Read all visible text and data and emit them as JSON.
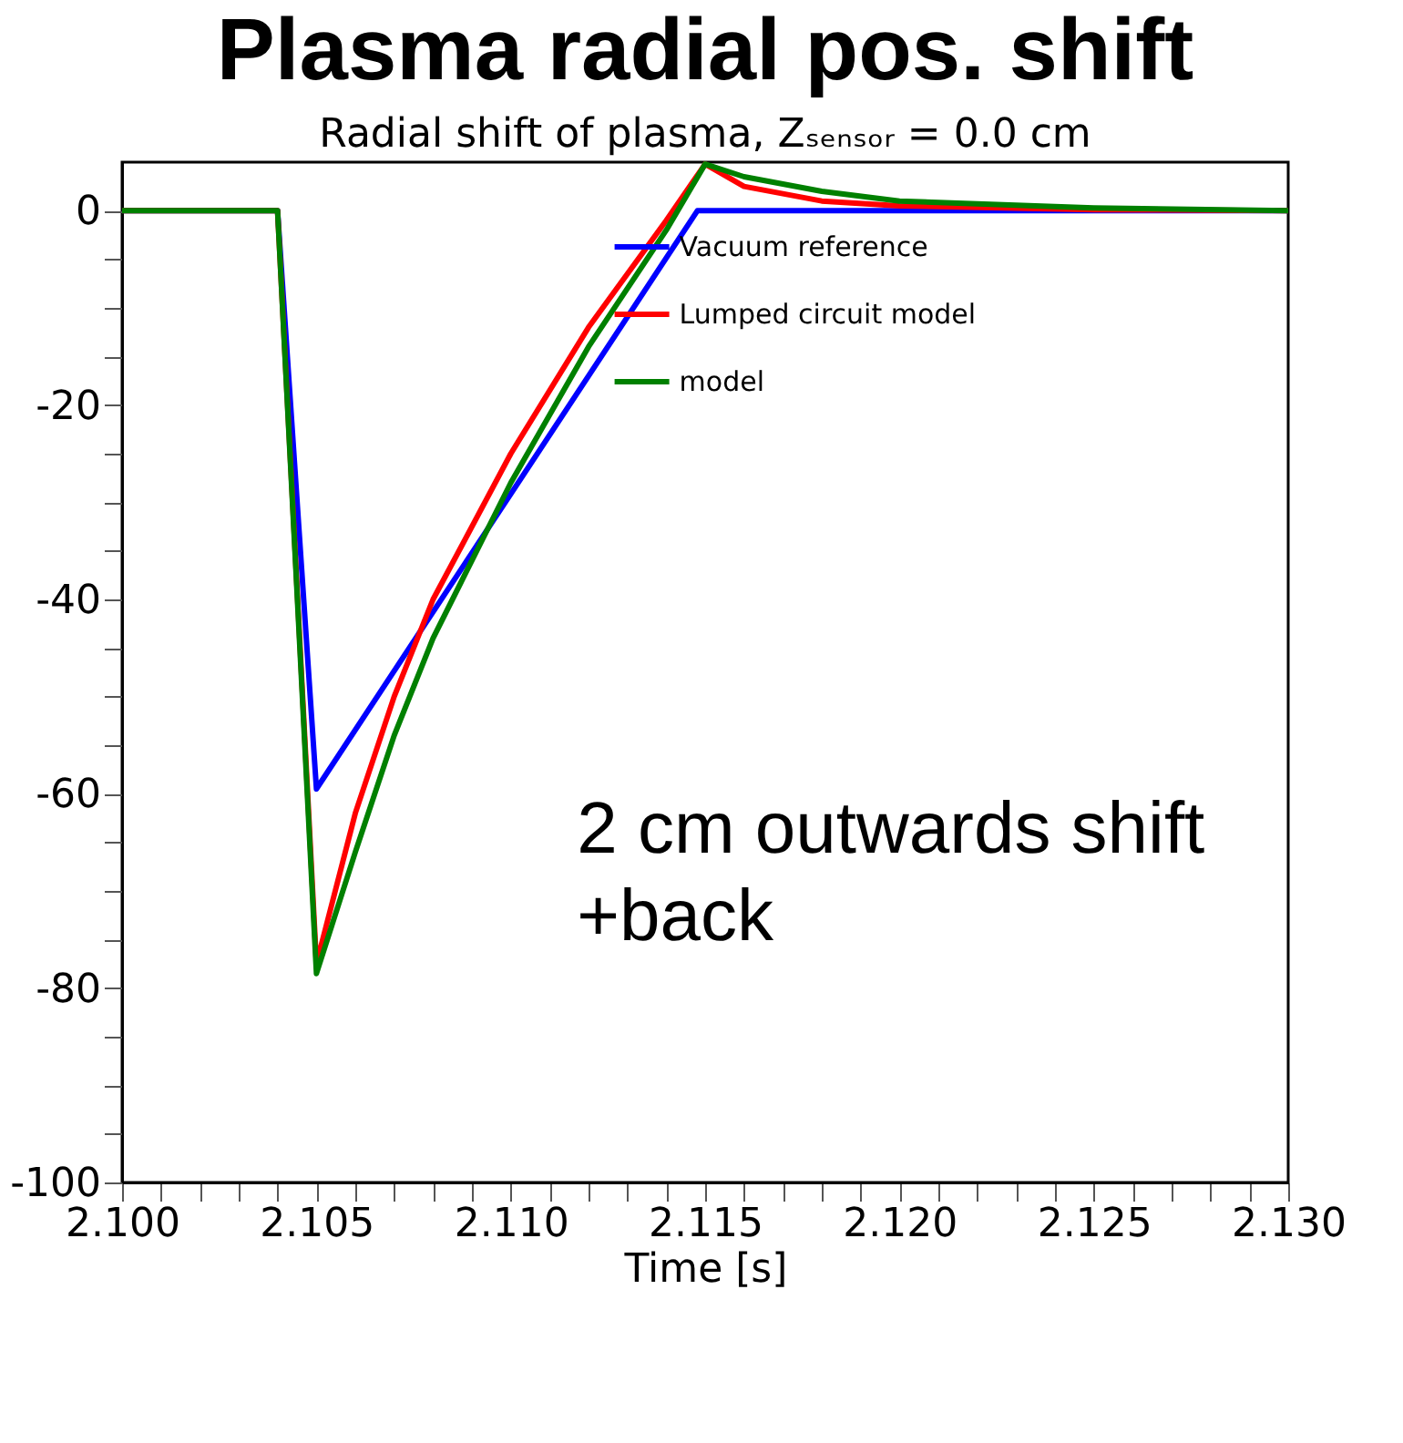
{
  "chart_data": {
    "type": "line",
    "title": "Plasma radial pos. shift",
    "subtitle": "Radial shift of plasma, Zₛₑₙₛₒᵣ = 0.0 cm",
    "xlabel": "Time [s]",
    "annotations": [
      "2 cm outwards shift\n+back"
    ],
    "series": [
      {
        "name": "Vacuum reference",
        "color": "#0000ff",
        "x": [
          2.1,
          2.104,
          2.105,
          2.1148,
          2.13
        ],
        "values": [
          0,
          0,
          -59.5,
          0,
          0
        ]
      },
      {
        "name": "Lumped circuit model",
        "color": "#ff0000",
        "x": [
          2.1,
          2.104,
          2.105,
          2.106,
          2.107,
          2.108,
          2.11,
          2.112,
          2.114,
          2.115,
          2.116,
          2.118,
          2.12,
          2.125,
          2.13
        ],
        "values": [
          0,
          0,
          -77.5,
          -62,
          -50,
          -40,
          -25,
          -12,
          -1,
          4.8,
          2.5,
          1,
          0.5,
          0.1,
          0
        ]
      },
      {
        "name": "model",
        "color": "#008000",
        "x": [
          2.1,
          2.104,
          2.105,
          2.106,
          2.107,
          2.108,
          2.11,
          2.112,
          2.114,
          2.115,
          2.116,
          2.118,
          2.12,
          2.125,
          2.13
        ],
        "values": [
          0,
          0,
          -78.5,
          -66,
          -54,
          -44,
          -28,
          -14,
          -2,
          4.8,
          3.5,
          2,
          1,
          0.3,
          0
        ]
      }
    ],
    "xlim": [
      2.1,
      2.13
    ],
    "ylim": [
      -100,
      5
    ],
    "xticks": [
      {
        "value": 2.1,
        "label": "2.100"
      },
      {
        "value": 2.101,
        "label": null
      },
      {
        "value": 2.102,
        "label": null
      },
      {
        "value": 2.103,
        "label": null
      },
      {
        "value": 2.104,
        "label": null
      },
      {
        "value": 2.105,
        "label": "2.105"
      },
      {
        "value": 2.106,
        "label": null
      },
      {
        "value": 2.107,
        "label": null
      },
      {
        "value": 2.108,
        "label": null
      },
      {
        "value": 2.109,
        "label": null
      },
      {
        "value": 2.11,
        "label": "2.110"
      },
      {
        "value": 2.111,
        "label": null
      },
      {
        "value": 2.112,
        "label": null
      },
      {
        "value": 2.113,
        "label": null
      },
      {
        "value": 2.114,
        "label": null
      },
      {
        "value": 2.115,
        "label": "2.115"
      },
      {
        "value": 2.116,
        "label": null
      },
      {
        "value": 2.117,
        "label": null
      },
      {
        "value": 2.118,
        "label": null
      },
      {
        "value": 2.119,
        "label": null
      },
      {
        "value": 2.12,
        "label": "2.120"
      },
      {
        "value": 2.121,
        "label": null
      },
      {
        "value": 2.122,
        "label": null
      },
      {
        "value": 2.123,
        "label": null
      },
      {
        "value": 2.124,
        "label": null
      },
      {
        "value": 2.125,
        "label": "2.125"
      },
      {
        "value": 2.126,
        "label": null
      },
      {
        "value": 2.127,
        "label": null
      },
      {
        "value": 2.128,
        "label": null
      },
      {
        "value": 2.129,
        "label": null
      },
      {
        "value": 2.13,
        "label": "2.130"
      }
    ],
    "yticks": [
      -100,
      {
        "value": -95,
        "label": null
      },
      {
        "value": -90,
        "label": null
      },
      {
        "value": -85,
        "label": null
      },
      -80,
      {
        "value": -75,
        "label": null
      },
      {
        "value": -70,
        "label": null
      },
      {
        "value": -65,
        "label": null
      },
      -60,
      {
        "value": -55,
        "label": null
      },
      {
        "value": -50,
        "label": null
      },
      {
        "value": -45,
        "label": null
      },
      -40,
      {
        "value": -35,
        "label": null
      },
      {
        "value": -30,
        "label": null
      },
      {
        "value": -25,
        "label": null
      },
      -20,
      {
        "value": -15,
        "label": null
      },
      {
        "value": -10,
        "label": null
      },
      {
        "value": -5,
        "label": null
      },
      0
    ],
    "grid": false,
    "legend": "top",
    "marker": "none",
    "line_style": "solid"
  }
}
